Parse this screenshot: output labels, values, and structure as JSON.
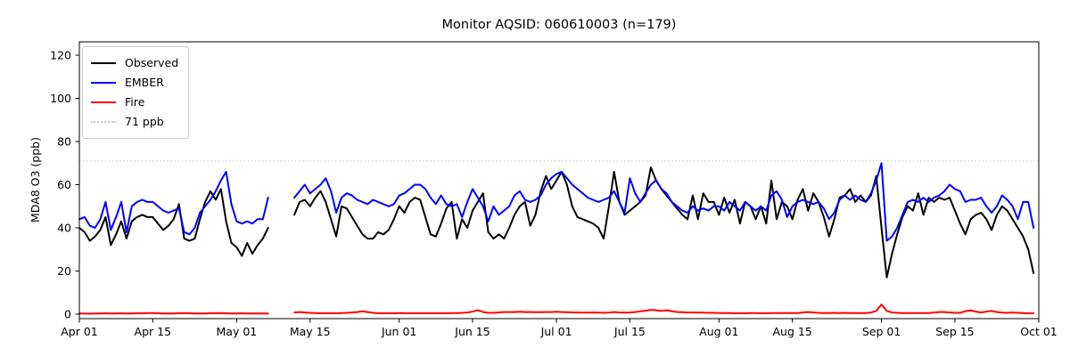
{
  "figure": {
    "title": "Monitor AQSID: 060610003 (n=179)"
  },
  "y_axis": {
    "label": "MDA8 O3 (ppb)",
    "ticks": [
      0,
      20,
      40,
      60,
      80,
      100,
      120
    ]
  },
  "x_axis": {
    "ticks": [
      {
        "label": "Apr 01",
        "day": 0
      },
      {
        "label": "Apr 15",
        "day": 14
      },
      {
        "label": "May 01",
        "day": 30
      },
      {
        "label": "May 15",
        "day": 44
      },
      {
        "label": "Jun 01",
        "day": 61
      },
      {
        "label": "Jun 15",
        "day": 75
      },
      {
        "label": "Jul 01",
        "day": 91
      },
      {
        "label": "Jul 15",
        "day": 105
      },
      {
        "label": "Aug 01",
        "day": 122
      },
      {
        "label": "Aug 15",
        "day": 136
      },
      {
        "label": "Sep 01",
        "day": 153
      },
      {
        "label": "Sep 15",
        "day": 167
      },
      {
        "label": "Oct 01",
        "day": 183
      }
    ]
  },
  "legend": {
    "items": [
      {
        "label": "Observed",
        "color": "#000000",
        "dash": "solid"
      },
      {
        "label": "EMBER",
        "color": "#0000ff",
        "dash": "solid"
      },
      {
        "label": "Fire",
        "color": "#ff0000",
        "dash": "solid"
      },
      {
        "label": "71 ppb",
        "color": "#c8c8c8",
        "dash": "dotted"
      }
    ]
  },
  "chart_data": {
    "type": "line",
    "title": "Monitor AQSID: 060610003 (n=179)",
    "xlabel": "",
    "ylabel": "MDA8 O3 (ppb)",
    "x_start": "Apr 01",
    "x_end": "Sep 30",
    "x_step_days": 1,
    "total_days": 183,
    "n_observed": 179,
    "missing_dates": [
      "May 08",
      "May 09",
      "May 10",
      "May 11"
    ],
    "ylim": [
      -2,
      126
    ],
    "grid": false,
    "legend_position": "upper left",
    "threshold": {
      "label": "71 ppb",
      "value": 71,
      "color": "#c8c8c8",
      "style": "dotted"
    },
    "series": [
      {
        "name": "Observed",
        "color": "#000000",
        "values": [
          40,
          38,
          34,
          36,
          39,
          45,
          32,
          37,
          43,
          35,
          43,
          45,
          46,
          45,
          45,
          42,
          39,
          41,
          44,
          51,
          35,
          34,
          35,
          44,
          52,
          57,
          53,
          58,
          43,
          33,
          31,
          27,
          33,
          28,
          32,
          35,
          40,
          null,
          null,
          null,
          null,
          46,
          52,
          53,
          50,
          54,
          57,
          52,
          44,
          36,
          50,
          49,
          45,
          41,
          37,
          35,
          35,
          38,
          37,
          39,
          44,
          50,
          47,
          52,
          54,
          53,
          45,
          37,
          36,
          42,
          49,
          52,
          35,
          44,
          40,
          48,
          52,
          56,
          38,
          35,
          37,
          35,
          40,
          46,
          50,
          52,
          41,
          46,
          57,
          64,
          58,
          62,
          66,
          60,
          50,
          45,
          44,
          43,
          42,
          40,
          35,
          50,
          66,
          52,
          46,
          48,
          50,
          52,
          55,
          68,
          62,
          58,
          55,
          52,
          49,
          46,
          44,
          55,
          44,
          56,
          52,
          52,
          46,
          54,
          47,
          53,
          42,
          52,
          50,
          44,
          50,
          42,
          62,
          44,
          52,
          50,
          44,
          53,
          58,
          48,
          56,
          52,
          45,
          36,
          44,
          54,
          55,
          58,
          52,
          55,
          52,
          55,
          64,
          40,
          17,
          28,
          37,
          45,
          50,
          48,
          56,
          46,
          54,
          52,
          54,
          53,
          54,
          48,
          42,
          37,
          44,
          46,
          47,
          44,
          39,
          46,
          50,
          48,
          44,
          40,
          36,
          30,
          19
        ]
      },
      {
        "name": "EMBER",
        "color": "#0000ff",
        "values": [
          44,
          45,
          41,
          40,
          44,
          52,
          39,
          45,
          52,
          38,
          50,
          52,
          53,
          52,
          52,
          50,
          48,
          47,
          48,
          49,
          38,
          37,
          40,
          47,
          50,
          53,
          57,
          62,
          66,
          51,
          43,
          42,
          43,
          42,
          44,
          44,
          54,
          null,
          null,
          null,
          null,
          54,
          57,
          60,
          56,
          58,
          60,
          63,
          57,
          47,
          54,
          56,
          55,
          53,
          52,
          51,
          53,
          52,
          51,
          50,
          51,
          55,
          56,
          58,
          60,
          60,
          58,
          54,
          51,
          55,
          51,
          50,
          51,
          45,
          52,
          58,
          54,
          50,
          43,
          50,
          46,
          48,
          50,
          55,
          57,
          53,
          52,
          53,
          55,
          60,
          63,
          65,
          66,
          63,
          60,
          58,
          56,
          54,
          53,
          52,
          53,
          54,
          57,
          52,
          47,
          63,
          56,
          52,
          56,
          60,
          62,
          58,
          56,
          52,
          50,
          48,
          47,
          50,
          48,
          49,
          48,
          50,
          50,
          48,
          52,
          50,
          48,
          52,
          50,
          48,
          50,
          48,
          55,
          57,
          53,
          45,
          50,
          52,
          53,
          52,
          51,
          52,
          49,
          44,
          47,
          53,
          55,
          53,
          55,
          53,
          52,
          56,
          62,
          70,
          34,
          36,
          40,
          46,
          52,
          53,
          52,
          54,
          52,
          54,
          55,
          57,
          60,
          58,
          57,
          52,
          53,
          53,
          54,
          50,
          47,
          50,
          55,
          53,
          50,
          44,
          52,
          52,
          40
        ]
      },
      {
        "name": "Fire",
        "color": "#ff0000",
        "values": [
          0.3,
          0.3,
          0.2,
          0.3,
          0.3,
          0.4,
          0.3,
          0.3,
          0.4,
          0.3,
          0.3,
          0.4,
          0.4,
          0.5,
          0.5,
          0.4,
          0.3,
          0.3,
          0.3,
          0.4,
          0.4,
          0.4,
          0.3,
          0.3,
          0.3,
          0.4,
          0.4,
          0.5,
          0.4,
          0.3,
          0.3,
          0.4,
          0.3,
          0.3,
          0.3,
          0.3,
          0.3,
          null,
          null,
          null,
          null,
          0.8,
          1.0,
          0.8,
          0.6,
          0.5,
          0.4,
          0.4,
          0.4,
          0.4,
          0.5,
          0.6,
          0.8,
          1.0,
          1.3,
          1.0,
          0.6,
          0.4,
          0.4,
          0.4,
          0.4,
          0.5,
          0.4,
          0.4,
          0.4,
          0.4,
          0.4,
          0.4,
          0.4,
          0.4,
          0.4,
          0.5,
          0.5,
          0.6,
          0.8,
          1.2,
          1.9,
          1.0,
          0.6,
          0.6,
          0.8,
          1.0,
          1.0,
          1.0,
          1.1,
          1.0,
          1.0,
          0.9,
          0.9,
          1.0,
          1.0,
          1.1,
          1.0,
          0.9,
          0.8,
          0.8,
          0.7,
          0.7,
          0.8,
          0.7,
          0.6,
          0.7,
          1.0,
          0.8,
          0.7,
          0.8,
          1.0,
          1.3,
          1.6,
          2.0,
          1.8,
          1.5,
          1.8,
          1.4,
          1.0,
          0.9,
          0.8,
          0.8,
          0.7,
          0.7,
          0.6,
          0.6,
          0.5,
          0.5,
          0.5,
          0.4,
          0.4,
          0.4,
          0.5,
          0.5,
          0.4,
          0.4,
          0.5,
          0.5,
          0.5,
          0.5,
          0.5,
          0.5,
          0.8,
          1.0,
          0.8,
          0.6,
          0.5,
          0.5,
          0.6,
          0.5,
          0.6,
          0.5,
          0.5,
          0.5,
          0.5,
          0.8,
          1.5,
          4.5,
          1.5,
          0.8,
          0.6,
          0.5,
          0.5,
          0.5,
          0.5,
          0.5,
          0.5,
          0.8,
          1.0,
          1.0,
          0.8,
          0.6,
          0.6,
          1.4,
          1.8,
          1.2,
          0.8,
          1.2,
          1.5,
          1.0,
          0.7,
          0.6,
          0.8,
          0.6,
          0.5,
          0.4,
          0.4
        ]
      }
    ]
  }
}
